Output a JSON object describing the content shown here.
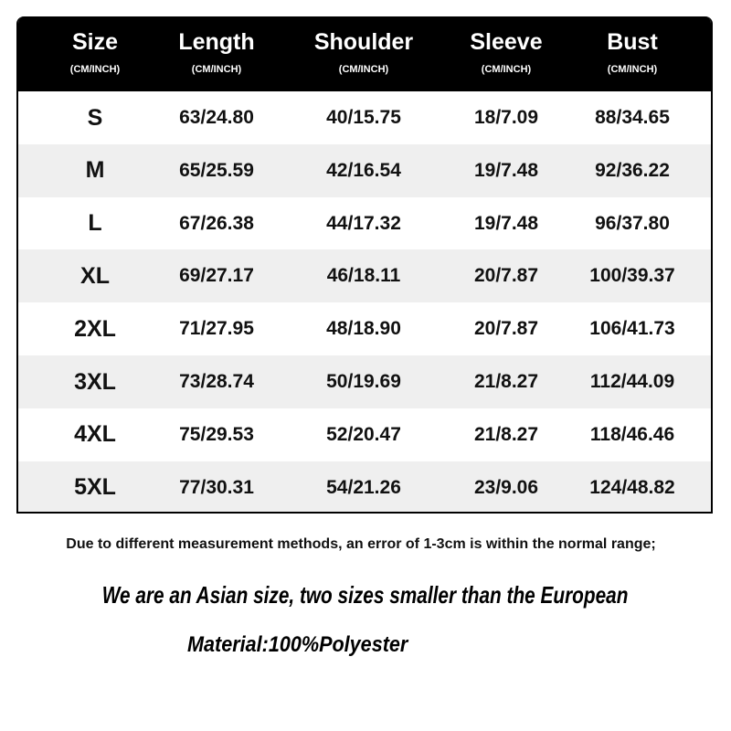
{
  "header": {
    "columns": [
      {
        "title": "Size",
        "unit": "(CM/INCH)"
      },
      {
        "title": "Length",
        "unit": "(CM/INCH)"
      },
      {
        "title": "Shoulder",
        "unit": "(CM/INCH)"
      },
      {
        "title": "Sleeve",
        "unit": "(CM/INCH)"
      },
      {
        "title": "Bust",
        "unit": "(CM/INCH)"
      }
    ]
  },
  "table": {
    "rows": [
      [
        "S",
        "63/24.80",
        "40/15.75",
        "18/7.09",
        "88/34.65"
      ],
      [
        "M",
        "65/25.59",
        "42/16.54",
        "19/7.48",
        "92/36.22"
      ],
      [
        "L",
        "67/26.38",
        "44/17.32",
        "19/7.48",
        "96/37.80"
      ],
      [
        "XL",
        "69/27.17",
        "46/18.11",
        "20/7.87",
        "100/39.37"
      ],
      [
        "2XL",
        "71/27.95",
        "48/18.90",
        "20/7.87",
        "106/41.73"
      ],
      [
        "3XL",
        "73/28.74",
        "50/19.69",
        "21/8.27",
        "112/44.09"
      ],
      [
        "4XL",
        "75/29.53",
        "52/20.47",
        "21/8.27",
        "118/46.46"
      ],
      [
        "5XL",
        "77/30.31",
        "54/21.26",
        "23/9.06",
        "124/48.82"
      ]
    ]
  },
  "notes": {
    "measurement": "Due to different measurement methods, an error of 1-3cm is within the normal range;",
    "sizing": "We are an Asian size, two sizes smaller than the European",
    "material": "Material:100%Polyester"
  }
}
